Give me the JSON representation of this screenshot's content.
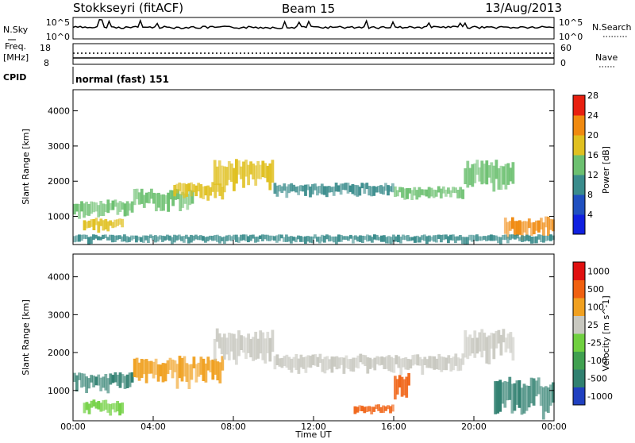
{
  "header": {
    "station": "Stokkseyri (fitACF)",
    "beam": "Beam 15",
    "date": "13/Aug/2013"
  },
  "strip_panels": {
    "noise_left_label": "N.Sky",
    "noise_right_label": "N.Search",
    "noise_left_ticks": [
      "10^5",
      "10^0"
    ],
    "noise_right_ticks": [
      "10^5",
      "10^0"
    ],
    "freq_label_1": "Freq.",
    "freq_label_2": "[MHz]",
    "freq_ticks": [
      "18",
      "8"
    ],
    "nave_label": "Nave",
    "nave_ticks": [
      "60",
      "0"
    ],
    "cpid_label": "CPID",
    "cpid_text": "normal (fast) 151"
  },
  "chart_data": [
    {
      "type": "heatmap",
      "name": "power",
      "ylabel": "Slant Range [km]",
      "yticks": [
        1000,
        2000,
        3000,
        4000
      ],
      "ylim": [
        200,
        4600
      ],
      "colorbar_label": "Power [dB]",
      "colorbar_ticks": [
        4,
        8,
        12,
        16,
        20,
        24,
        28
      ],
      "colorbar_colors": [
        "#1020e0",
        "#2050c0",
        "#3a8c8c",
        "#6cc070",
        "#e0c020",
        "#f08a10",
        "#e82010"
      ],
      "echo_bands": [
        {
          "t0": 0.0,
          "t1": 3.0,
          "r0": 1000,
          "r1": 1400,
          "level": 3
        },
        {
          "t0": 0.5,
          "t1": 2.5,
          "r0": 600,
          "r1": 900,
          "level": 4
        },
        {
          "t0": 3.0,
          "t1": 6.0,
          "r0": 1200,
          "r1": 1700,
          "level": 3
        },
        {
          "t0": 5.0,
          "t1": 7.5,
          "r0": 1500,
          "r1": 1900,
          "level": 4
        },
        {
          "t0": 7.0,
          "t1": 10.0,
          "r0": 1800,
          "r1": 2500,
          "level": 4
        },
        {
          "t0": 10.0,
          "t1": 16.0,
          "r0": 1600,
          "r1": 1900,
          "level": 2
        },
        {
          "t0": 16.0,
          "t1": 19.5,
          "r0": 1500,
          "r1": 1800,
          "level": 3
        },
        {
          "t0": 19.5,
          "t1": 22.0,
          "r0": 1800,
          "r1": 2500,
          "level": 3
        },
        {
          "t0": 21.5,
          "t1": 24.0,
          "r0": 400,
          "r1": 900,
          "level": 5
        },
        {
          "t0": 0.0,
          "t1": 24.0,
          "r0": 250,
          "r1": 450,
          "level": 2
        }
      ]
    },
    {
      "type": "heatmap",
      "name": "velocity",
      "ylabel": "Slant Range [km]",
      "xlabel": "Time UT",
      "xticks": [
        "00:00",
        "04:00",
        "08:00",
        "12:00",
        "16:00",
        "20:00",
        "00:00"
      ],
      "xlim": [
        0,
        24
      ],
      "yticks": [
        1000,
        2000,
        3000,
        4000
      ],
      "ylim": [
        200,
        4600
      ],
      "colorbar_label": "Velocity [m s^-1]",
      "colorbar_ticks": [
        "1000",
        "500",
        "100",
        "25",
        "-25",
        "-100",
        "-500",
        "-1000"
      ],
      "colorbar_colors": [
        "#2040c0",
        "#308070",
        "#40a050",
        "#70d040",
        "#c8c8c0",
        "#f0a020",
        "#f06010",
        "#e01010"
      ],
      "echo_bands": [
        {
          "t0": 0.0,
          "t1": 3.0,
          "r0": 1000,
          "r1": 1400,
          "level": 1
        },
        {
          "t0": 0.5,
          "t1": 2.5,
          "r0": 400,
          "r1": 700,
          "level": 3
        },
        {
          "t0": 3.0,
          "t1": 7.5,
          "r0": 1200,
          "r1": 1800,
          "level": 5
        },
        {
          "t0": 7.0,
          "t1": 10.0,
          "r0": 1800,
          "r1": 2500,
          "level": 4
        },
        {
          "t0": 10.0,
          "t1": 19.5,
          "r0": 1500,
          "r1": 1900,
          "level": 4
        },
        {
          "t0": 16.0,
          "t1": 16.8,
          "r0": 800,
          "r1": 1400,
          "level": 6
        },
        {
          "t0": 19.5,
          "t1": 22.0,
          "r0": 1800,
          "r1": 2500,
          "level": 4
        },
        {
          "t0": 21.0,
          "t1": 24.0,
          "r0": 400,
          "r1": 1200,
          "level": 1
        },
        {
          "t0": 14.0,
          "t1": 16.0,
          "r0": 400,
          "r1": 600,
          "level": 6
        }
      ]
    }
  ]
}
